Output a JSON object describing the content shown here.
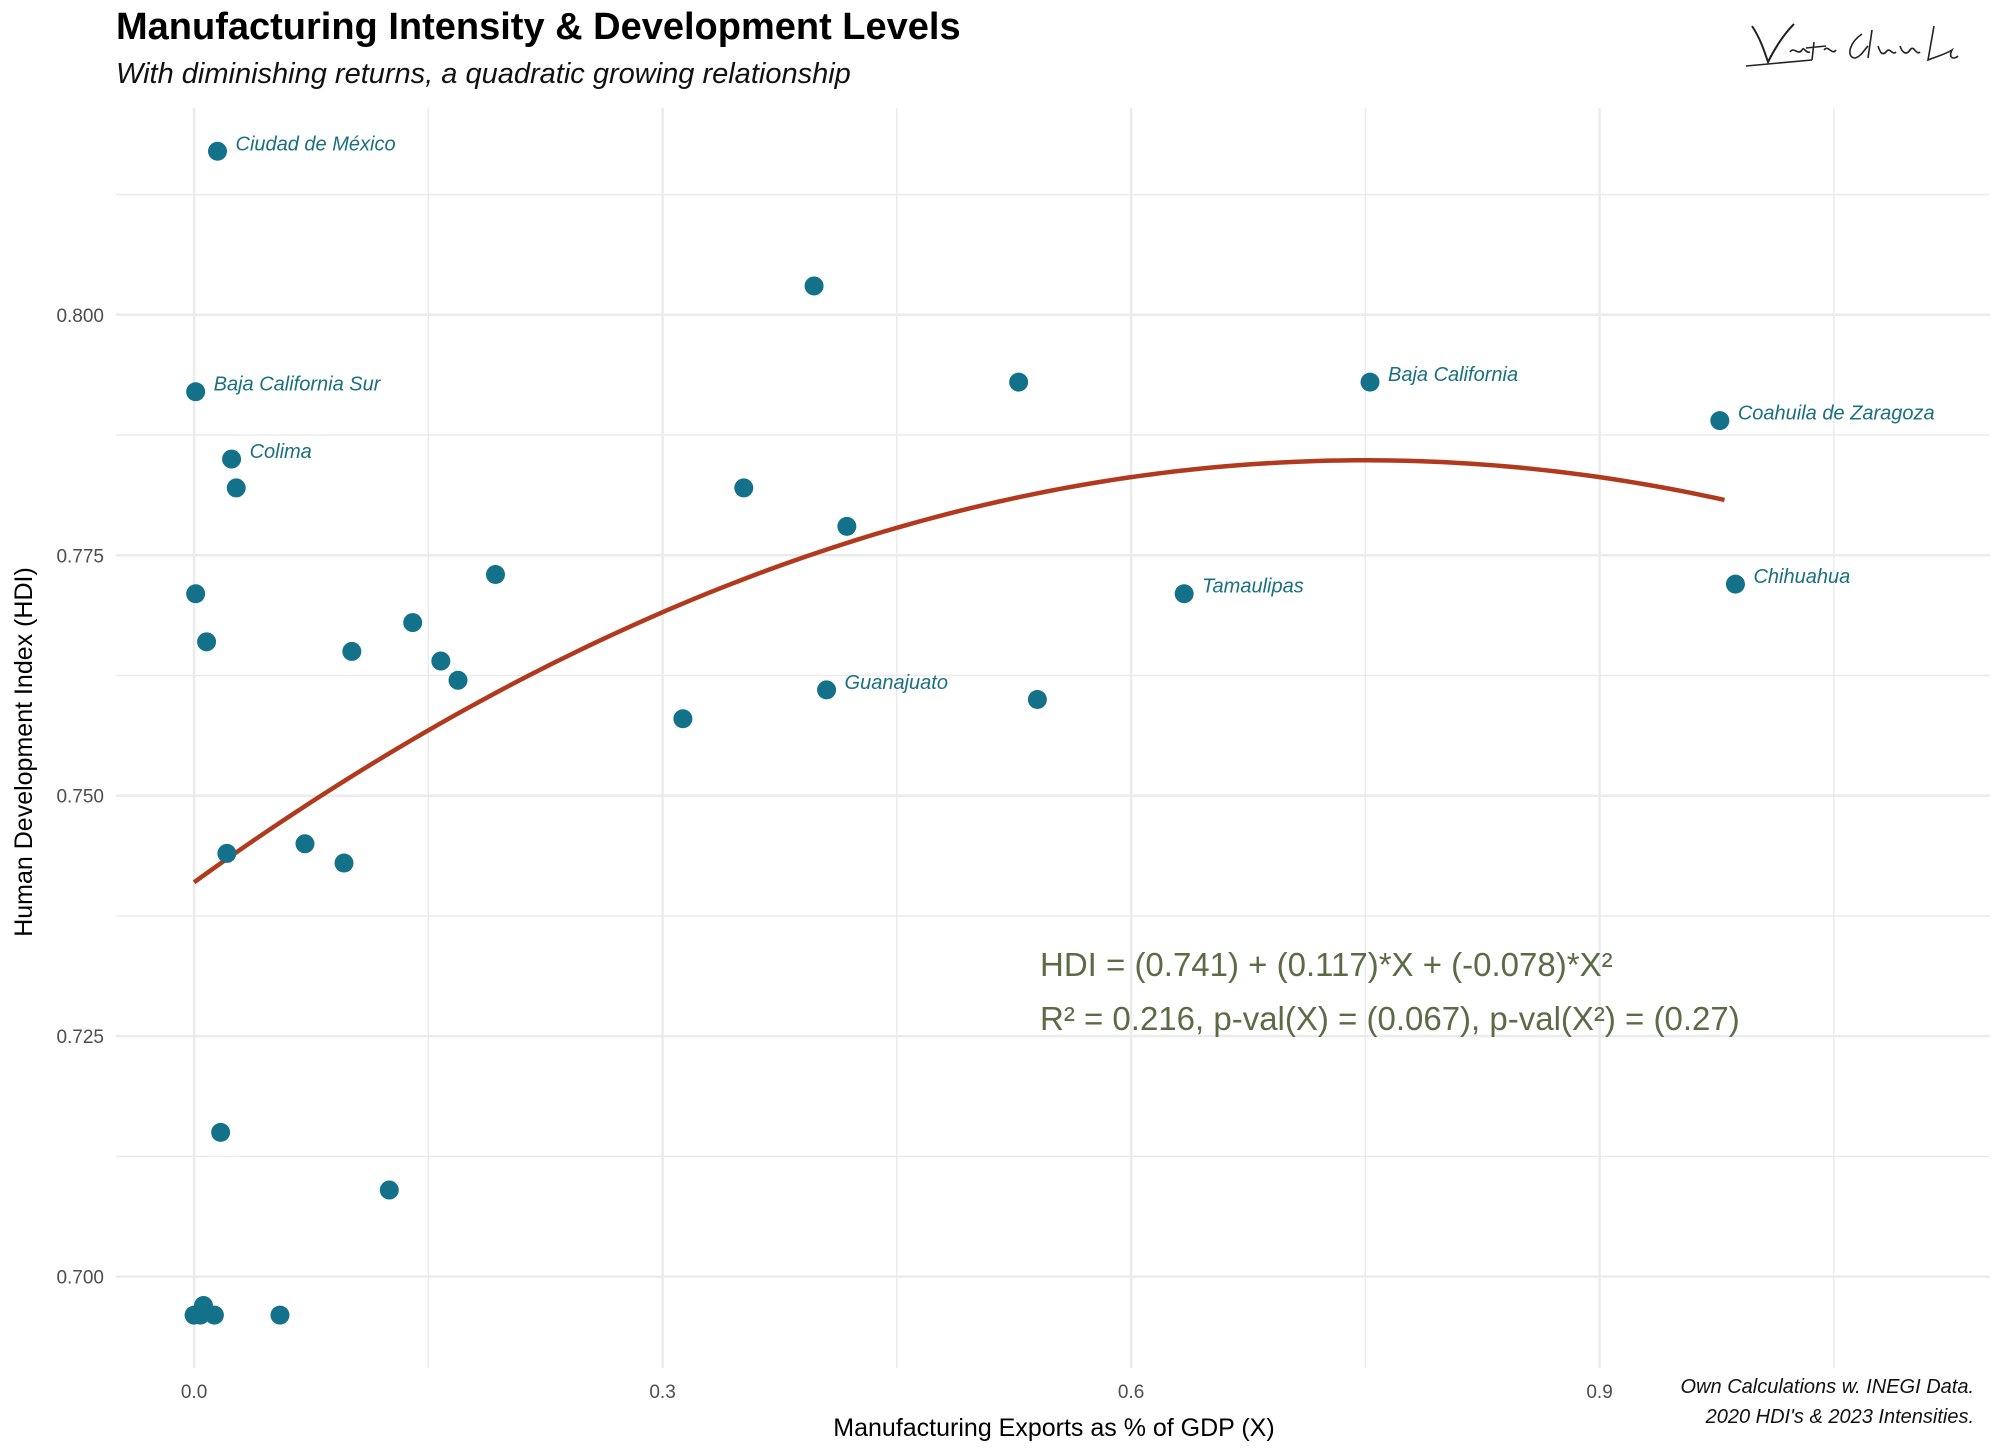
{
  "title": "Manufacturing Intensity & Development Levels",
  "subtitle": "With diminishing returns, a quadratic growing relationship",
  "caption": {
    "line1": "Own Calculations w. INEGI Data.",
    "line2": "2020 HDI's & 2023 Intensities."
  },
  "signature_icon": "handwritten-signature",
  "colors": {
    "points": "#13718a",
    "fit_line": "#b13a1e",
    "equation": "#5a6b45",
    "labels": "#1a7080",
    "grid": "#ebebeb"
  },
  "chart_data": {
    "type": "scatter",
    "xlabel": "Manufacturing Exports as % of GDP (X)",
    "ylabel": "Human Development Index (HDI)",
    "xlim": [
      -0.05,
      1.15
    ],
    "ylim": [
      0.6905,
      0.8215
    ],
    "x_ticks": [
      0.0,
      0.3,
      0.6,
      0.9
    ],
    "x_tick_labels": [
      "0.0",
      "0.3",
      "0.6",
      "0.9"
    ],
    "y_ticks": [
      0.7,
      0.725,
      0.75,
      0.775,
      0.8
    ],
    "y_tick_labels": [
      "0.700",
      "0.725",
      "0.750",
      "0.775",
      "0.800"
    ],
    "grid": true,
    "legend": "none",
    "fit": {
      "type": "quadratic",
      "intercept": 0.741,
      "b1": 0.117,
      "b2": -0.078,
      "x_range": [
        0.0,
        0.98
      ]
    },
    "equation_lines": [
      "HDI = (0.741) + (0.117)*X + (-0.078)*X²",
      "R² = 0.216, p-val(X) = (0.067), p-val(X²) = (0.27)"
    ],
    "points": [
      {
        "x": 0.015,
        "y": 0.817,
        "label": "Ciudad de México"
      },
      {
        "x": 0.001,
        "y": 0.792,
        "label": "Baja California Sur"
      },
      {
        "x": 0.024,
        "y": 0.785,
        "label": "Colima"
      },
      {
        "x": 0.027,
        "y": 0.782,
        "label": ""
      },
      {
        "x": 0.001,
        "y": 0.771,
        "label": ""
      },
      {
        "x": 0.008,
        "y": 0.766,
        "label": ""
      },
      {
        "x": 0.021,
        "y": 0.744,
        "label": ""
      },
      {
        "x": 0.017,
        "y": 0.715,
        "label": ""
      },
      {
        "x": 0.0,
        "y": 0.696,
        "label": ""
      },
      {
        "x": 0.004,
        "y": 0.696,
        "label": ""
      },
      {
        "x": 0.006,
        "y": 0.697,
        "label": ""
      },
      {
        "x": 0.013,
        "y": 0.696,
        "label": ""
      },
      {
        "x": 0.055,
        "y": 0.696,
        "label": ""
      },
      {
        "x": 0.071,
        "y": 0.745,
        "label": ""
      },
      {
        "x": 0.096,
        "y": 0.743,
        "label": ""
      },
      {
        "x": 0.101,
        "y": 0.765,
        "label": ""
      },
      {
        "x": 0.125,
        "y": 0.709,
        "label": ""
      },
      {
        "x": 0.14,
        "y": 0.768,
        "label": ""
      },
      {
        "x": 0.158,
        "y": 0.764,
        "label": ""
      },
      {
        "x": 0.169,
        "y": 0.762,
        "label": ""
      },
      {
        "x": 0.193,
        "y": 0.773,
        "label": ""
      },
      {
        "x": 0.313,
        "y": 0.758,
        "label": ""
      },
      {
        "x": 0.352,
        "y": 0.782,
        "label": ""
      },
      {
        "x": 0.397,
        "y": 0.803,
        "label": ""
      },
      {
        "x": 0.405,
        "y": 0.761,
        "label": "Guanajuato"
      },
      {
        "x": 0.418,
        "y": 0.778,
        "label": ""
      },
      {
        "x": 0.528,
        "y": 0.793,
        "label": ""
      },
      {
        "x": 0.54,
        "y": 0.76,
        "label": ""
      },
      {
        "x": 0.634,
        "y": 0.771,
        "label": "Tamaulipas"
      },
      {
        "x": 0.753,
        "y": 0.793,
        "label": "Baja California"
      },
      {
        "x": 0.977,
        "y": 0.789,
        "label": "Coahuila de Zaragoza"
      },
      {
        "x": 0.987,
        "y": 0.772,
        "label": "Chihuahua"
      }
    ]
  }
}
